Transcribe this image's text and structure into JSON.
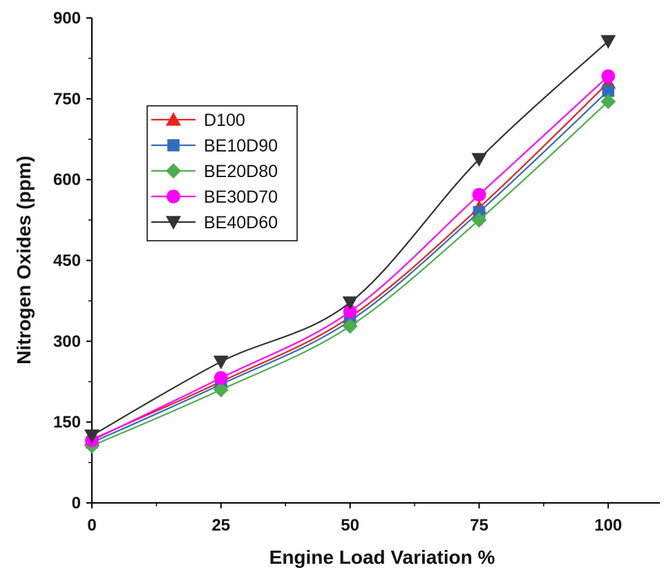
{
  "chart_data": {
    "type": "line",
    "title": "",
    "xlabel": "Engine Load Variation %",
    "ylabel": "Nitrogen Oxides (ppm)",
    "x": [
      0,
      25,
      50,
      75,
      100
    ],
    "xlim": [
      0,
      110
    ],
    "ylim": [
      0,
      900
    ],
    "xticks": [
      0,
      25,
      50,
      75,
      100
    ],
    "yticks": [
      0,
      150,
      300,
      450,
      600,
      750,
      900
    ],
    "grid": false,
    "legend_position": "upper-left",
    "series": [
      {
        "name": "D100",
        "color": "#e8231e",
        "marker": "triangle-up",
        "values": [
          118,
          225,
          345,
          548,
          780
        ]
      },
      {
        "name": "BE10D90",
        "color": "#2f6eba",
        "marker": "square",
        "values": [
          112,
          220,
          338,
          540,
          765
        ]
      },
      {
        "name": "BE20D80",
        "color": "#4cae4c",
        "marker": "diamond",
        "values": [
          106,
          210,
          328,
          525,
          745
        ]
      },
      {
        "name": "BE30D70",
        "color": "#ff00ff",
        "marker": "circle",
        "values": [
          116,
          232,
          355,
          572,
          792
        ]
      },
      {
        "name": "BE40D60",
        "color": "#333333",
        "marker": "triangle-down",
        "values": [
          125,
          262,
          372,
          638,
          857
        ]
      }
    ]
  }
}
